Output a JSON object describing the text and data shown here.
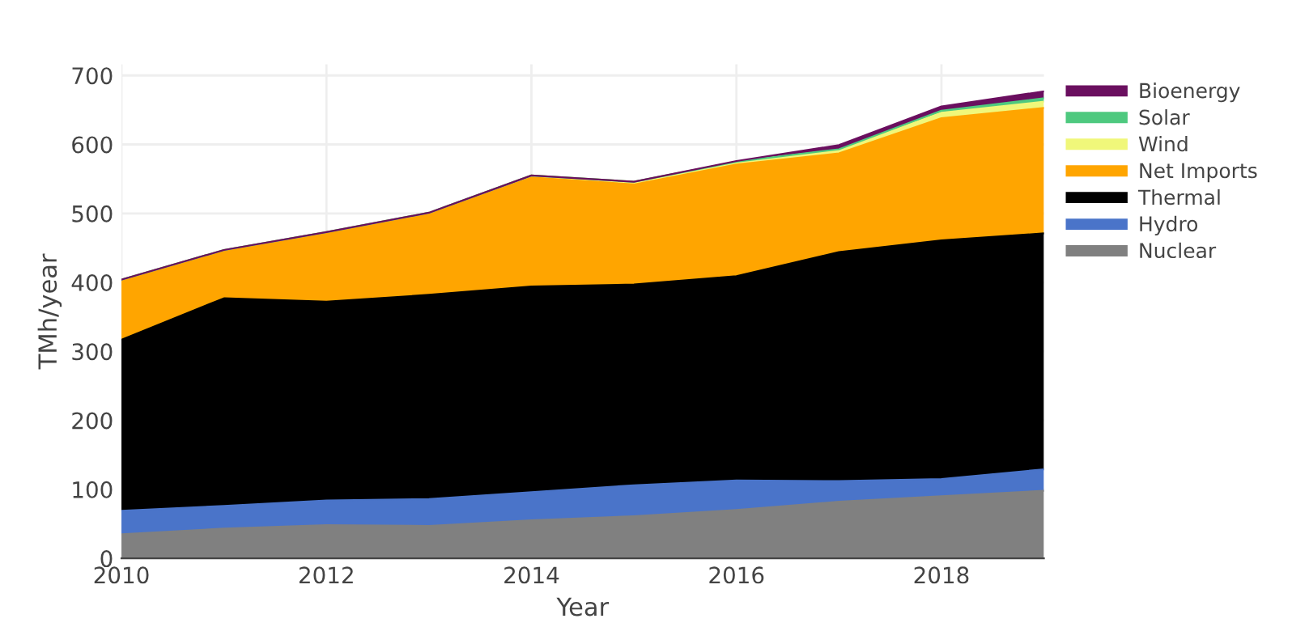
{
  "chart_data": {
    "type": "area",
    "stacked": true,
    "xlabel": "Year",
    "ylabel": "TMh/year",
    "x": [
      2010,
      2011,
      2012,
      2013,
      2014,
      2015,
      2016,
      2017,
      2018,
      2019
    ],
    "series": [
      {
        "name": "Nuclear",
        "color": "#808080",
        "values": [
          35,
          43,
          48,
          47,
          55,
          61,
          70,
          82,
          90,
          98
        ]
      },
      {
        "name": "Hydro",
        "color": "#4a74c9",
        "values": [
          34,
          33,
          36,
          39,
          41,
          45,
          43,
          30,
          25,
          31
        ]
      },
      {
        "name": "Thermal",
        "color": "#000000",
        "values": [
          248,
          301,
          288,
          296,
          298,
          291,
          296,
          332,
          346,
          342
        ]
      },
      {
        "name": "Net Imports",
        "color": "#ffa500",
        "values": [
          86,
          69,
          99,
          117,
          158,
          145,
          162,
          143,
          177,
          182
        ]
      },
      {
        "name": "Wind",
        "color": "#f0f77a",
        "values": [
          1,
          1,
          2,
          2,
          3,
          4,
          4,
          5,
          8,
          9
        ]
      },
      {
        "name": "Solar",
        "color": "#4ec97f",
        "values": [
          0,
          0,
          0,
          0,
          0,
          0,
          0,
          1,
          3,
          5
        ]
      },
      {
        "name": "Bioenergy",
        "color": "#6a0f5f",
        "values": [
          0,
          0,
          0,
          0,
          0,
          0,
          1,
          6,
          6,
          10
        ]
      }
    ],
    "xlim": [
      2010,
      2019
    ],
    "xticks": [
      2010,
      2012,
      2014,
      2016,
      2018
    ],
    "ylim": [
      0,
      716
    ],
    "yticks": [
      0,
      100,
      200,
      300,
      400,
      500,
      600,
      700
    ],
    "grid": true,
    "legend": "top right"
  }
}
